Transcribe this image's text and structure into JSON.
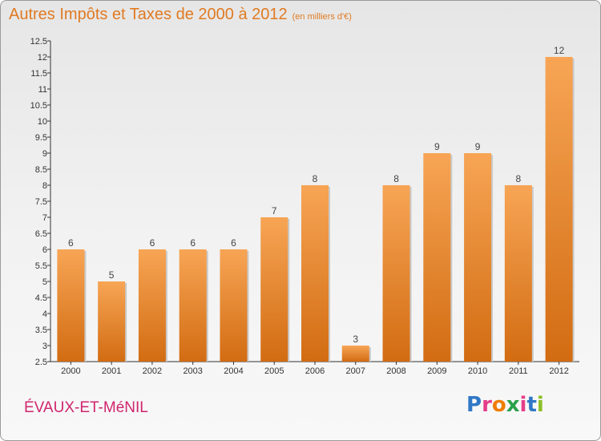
{
  "title": "Autres Impôts et Taxes de 2000 à 2012",
  "subtitle": "(en milliers d'€)",
  "location": "ÉVAUX-ET-MéNIL",
  "logo": {
    "text": "Proxiti",
    "letter_colors": [
      "#2f77c5",
      "#e43d8a",
      "#ef7d00",
      "#2aa14c",
      "#e43d8a",
      "#2f77c5",
      "#8cbf26"
    ]
  },
  "colors": {
    "bar_top": "#f7a555",
    "bar_bottom": "#d26c12",
    "title": "#e07a22",
    "location": "#d0266e"
  },
  "chart_data": {
    "type": "bar",
    "title": "Autres Impôts et Taxes de 2000 à 2012",
    "subtitle": "(en milliers d'€)",
    "xlabel": "",
    "ylabel": "",
    "categories": [
      "2000",
      "2001",
      "2002",
      "2003",
      "2004",
      "2005",
      "2006",
      "2007",
      "2008",
      "2009",
      "2010",
      "2011",
      "2012"
    ],
    "values": [
      6,
      5,
      6,
      6,
      6,
      7,
      8,
      3,
      8,
      9,
      9,
      8,
      12
    ],
    "data_labels": [
      "6",
      "5",
      "6",
      "6",
      "6",
      "7",
      "8",
      "3",
      "8",
      "9",
      "9",
      "8",
      "12"
    ],
    "ylim": [
      2.5,
      12.5
    ],
    "yticks": [
      2.5,
      3,
      3.5,
      4,
      4.5,
      5,
      5.5,
      6,
      6.5,
      7,
      7.5,
      8,
      8.5,
      9,
      9.5,
      10,
      10.5,
      11,
      11.5,
      12,
      12.5
    ],
    "ytick_labels": [
      "2.5",
      "3",
      "3.5",
      "4",
      "4.5",
      "5",
      "5.5",
      "6",
      "6.5",
      "7",
      "7.5",
      "8",
      "8.5",
      "9",
      "9.5",
      "10",
      "10.5",
      "11",
      "11.5",
      "12",
      "12.5"
    ],
    "grid": false,
    "legend": "none"
  }
}
